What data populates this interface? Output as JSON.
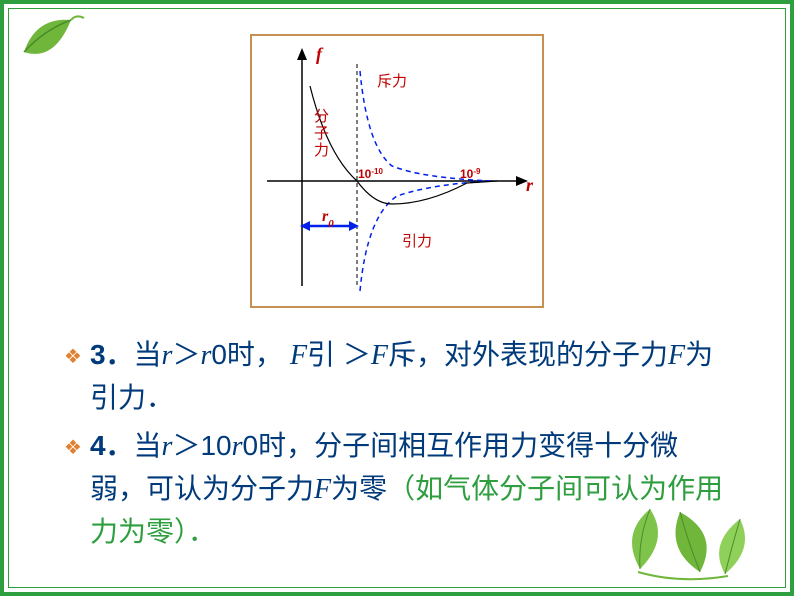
{
  "frame": {
    "border_color": "#2e9e3f",
    "inner_border_color": "#2e9e3f",
    "background": "#ffffff"
  },
  "chart": {
    "type": "line",
    "border_color": "#c89050",
    "axes": {
      "x_label": "r",
      "y_label": "f",
      "axis_color": "#000000",
      "arrow": true
    },
    "fonts": {
      "label_family": "Times New Roman",
      "label_style": "italic",
      "label_weight": "bold",
      "label_size": 18,
      "annot_size": 14,
      "annot_color": "#c00000"
    },
    "r0_marker": {
      "label": "r₀",
      "arrow_color": "#0020ee",
      "dash_line_color": "#000000"
    },
    "x_ticks": [
      {
        "label": "10⁻¹⁰",
        "label_html": "10<tspan baseline-shift=\"super\" font-size=\"8\">-10</tspan>",
        "color": "#c00000"
      },
      {
        "label": "10⁻⁹",
        "label_html": "10<tspan baseline-shift=\"super\" font-size=\"8\">-9</tspan>",
        "color": "#c00000"
      }
    ],
    "curves": {
      "repulsion": {
        "label": "斥力",
        "color": "#0020ee",
        "dash": "5,4",
        "width": 1.5
      },
      "attraction": {
        "label": "引力",
        "color": "#0020ee",
        "dash": "5,4",
        "width": 1.5
      },
      "net": {
        "label": "分子力",
        "color": "#000000",
        "dash": "none",
        "width": 1.2,
        "label_color": "#c00000"
      }
    }
  },
  "bullets": [
    {
      "prefix": "3．",
      "parts": [
        {
          "t": "当",
          "cls": ""
        },
        {
          "t": "r",
          "cls": "ital b"
        },
        {
          "t": "＞",
          "cls": ""
        },
        {
          "t": "r",
          "cls": "ital b"
        },
        {
          "t": "0时，",
          "cls": ""
        },
        {
          "t": " F",
          "cls": "ital b"
        },
        {
          "t": "引 ＞",
          "cls": ""
        },
        {
          "t": "F",
          "cls": "ital b"
        },
        {
          "t": "斥，对外表现的分子力",
          "cls": ""
        },
        {
          "t": "F",
          "cls": "ital b"
        },
        {
          "t": "为引力．",
          "cls": ""
        }
      ]
    },
    {
      "prefix": "4．",
      "parts": [
        {
          "t": "当",
          "cls": ""
        },
        {
          "t": "r",
          "cls": "ital b"
        },
        {
          "t": "＞10",
          "cls": ""
        },
        {
          "t": "r",
          "cls": "ital b"
        },
        {
          "t": "0时，分子间相互作用力变得十分微弱，可认为分子力",
          "cls": ""
        },
        {
          "t": "F",
          "cls": "ital b"
        },
        {
          "t": "为零",
          "cls": ""
        },
        {
          "t": "（如气体分子间可认为作用力为零）．",
          "cls": "green"
        }
      ]
    }
  ],
  "styles": {
    "bullet_marker_color": "#e08030",
    "text_color": "#003a7a",
    "green_color": "#2e9e3f",
    "text_fontsize": 28
  }
}
